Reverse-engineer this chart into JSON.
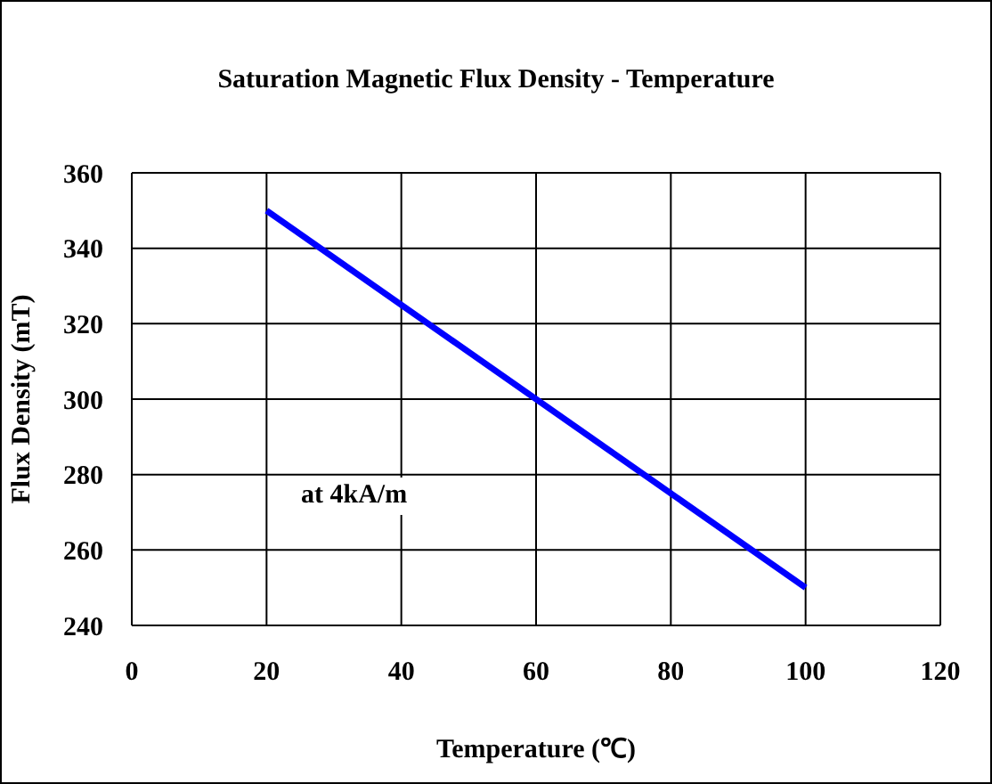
{
  "chart_data": {
    "type": "line",
    "title": "Saturation Magnetic Flux Density - Temperature",
    "xlabel": "Temperature (℃)",
    "ylabel": "Flux Density (mT)",
    "annotations": [
      "at 4kA/m"
    ],
    "x": [
      20,
      100
    ],
    "series": [
      {
        "color": "#0000ff",
        "values": [
          350,
          250
        ]
      }
    ],
    "xlim": [
      0,
      120
    ],
    "xticks": [
      0,
      20,
      40,
      60,
      80,
      100,
      120
    ],
    "ylim": [
      240,
      360
    ],
    "yticks": [
      240,
      260,
      280,
      300,
      320,
      340,
      360
    ],
    "grid": true,
    "legend": false,
    "marker": "none",
    "line_style": "solid"
  }
}
